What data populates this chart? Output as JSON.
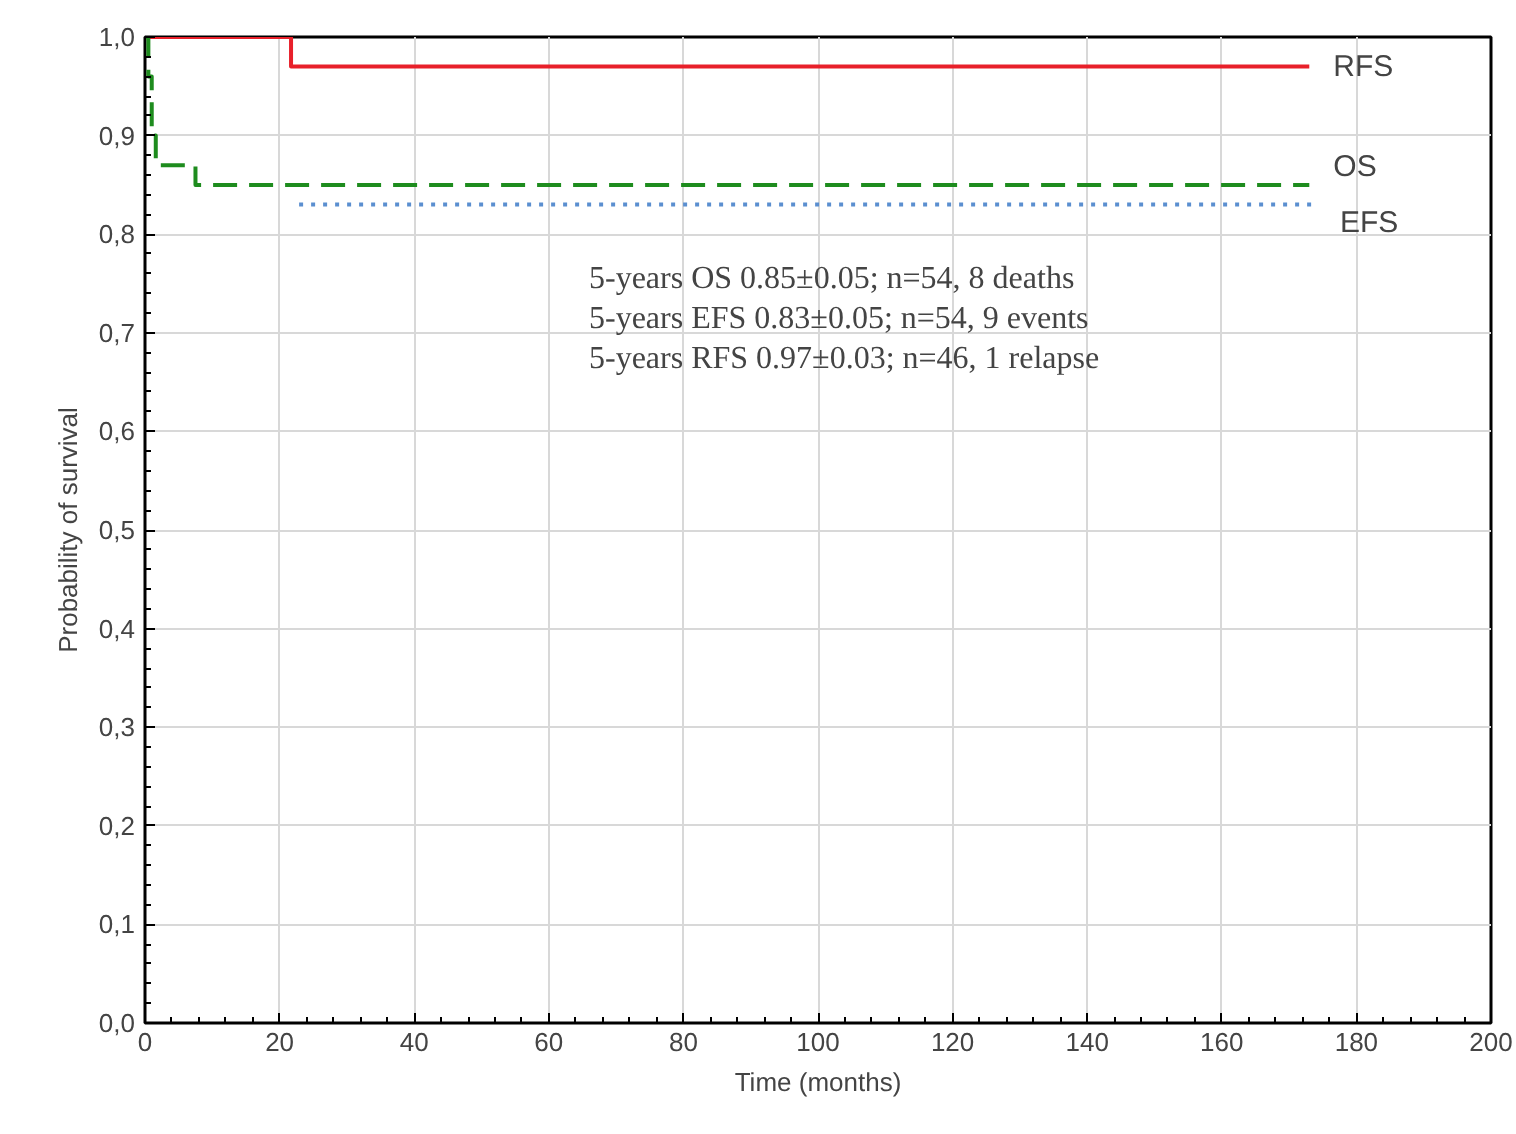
{
  "chart_data": {
    "type": "step",
    "xlabel": "Time (months)",
    "ylabel": "Probability of survival",
    "xlim": [
      0,
      200
    ],
    "xticks": [
      0,
      20,
      40,
      60,
      80,
      100,
      120,
      140,
      160,
      180,
      200
    ],
    "ylim": [
      0,
      1
    ],
    "yticks": [
      {
        "value": 0,
        "label": "0,0"
      },
      {
        "value": 0.1,
        "label": "0,1"
      },
      {
        "value": 0.2,
        "label": "0,2"
      },
      {
        "value": 0.3,
        "label": "0,3"
      },
      {
        "value": 0.4,
        "label": "0,4"
      },
      {
        "value": 0.5,
        "label": "0,5"
      },
      {
        "value": 0.6,
        "label": "0,6"
      },
      {
        "value": 0.7,
        "label": "0,7"
      },
      {
        "value": 0.8,
        "label": "0,8"
      },
      {
        "value": 0.9,
        "label": "0,9"
      },
      {
        "value": 1.0,
        "label": "1,0"
      }
    ],
    "grid": true,
    "marker": "none",
    "series": [
      {
        "name": "RFS",
        "color": "#e8202a",
        "line_style": "solid",
        "x": [
          0,
          21.7,
          173
        ],
        "values": [
          1.0,
          0.97,
          0.97
        ]
      },
      {
        "name": "OS",
        "color": "#1e8c1e",
        "line_style": "dashed",
        "x": [
          0,
          0.5,
          1.0,
          1.6,
          7.5,
          173
        ],
        "values": [
          1.0,
          0.96,
          0.9,
          0.87,
          0.85,
          0.85
        ]
      },
      {
        "name": "EFS",
        "color": "#5b8fd0",
        "line_style": "dotted",
        "x": [
          22.9,
          174
        ],
        "values": [
          0.83,
          0.83
        ]
      }
    ],
    "annotations": [
      "5-years OS 0.85±0.05; n=54, 8 deaths",
      "5-years EFS 0.83±0.05; n=54, 9 events",
      "5-years RFS 0.97±0.03; n=46, 1 relapse"
    ]
  }
}
